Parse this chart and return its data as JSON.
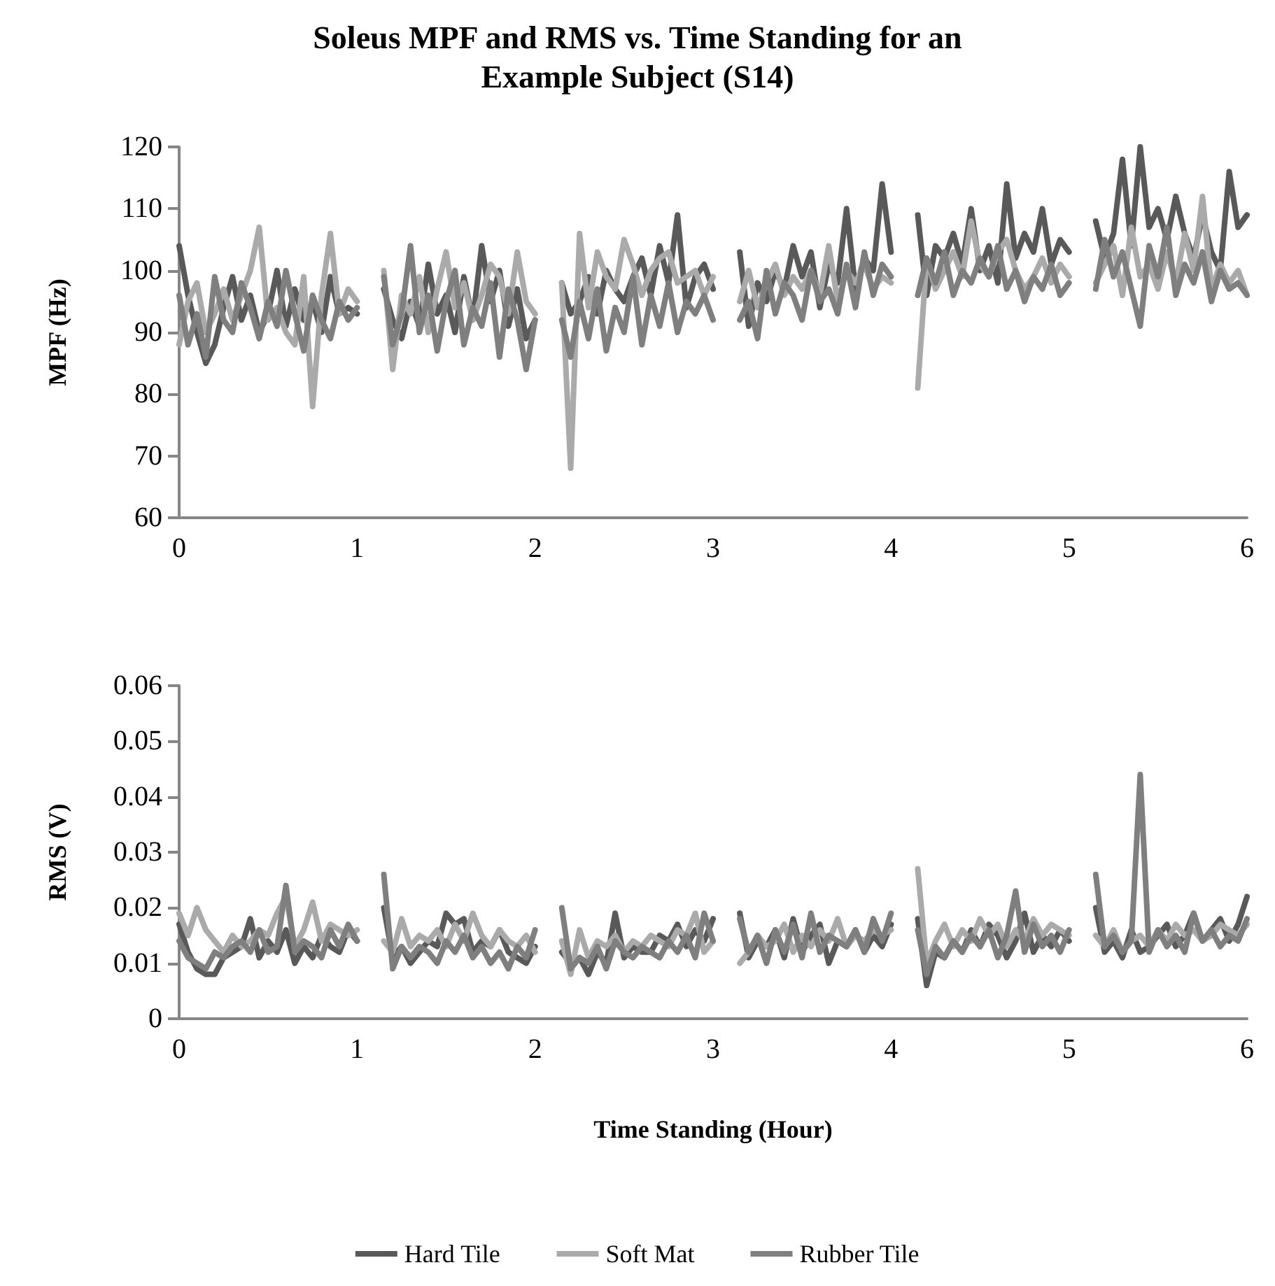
{
  "chart_data": [
    {
      "type": "line",
      "title": "Soleus MPF and RMS vs. Time Standing for an\nExample Subject (S14)",
      "ylabel": "MPF (Hz)",
      "xlim": [
        0,
        6
      ],
      "xticks": [
        0,
        1,
        2,
        3,
        4,
        5,
        6
      ],
      "ylim": [
        60,
        120
      ],
      "yticks": [
        60,
        70,
        80,
        90,
        100,
        110,
        120
      ],
      "grid": false,
      "legend": false,
      "marker": "none",
      "line_style": "solid",
      "x": [
        0,
        0.05,
        0.1,
        0.15,
        0.2,
        0.25,
        0.3,
        0.35,
        0.4,
        0.45,
        0.5,
        0.55,
        0.6,
        0.65,
        0.7,
        0.75,
        0.8,
        0.85,
        0.9,
        0.95,
        1,
        1.05,
        1.1,
        1.15,
        1.2,
        1.25,
        1.3,
        1.35,
        1.4,
        1.45,
        1.5,
        1.55,
        1.6,
        1.65,
        1.7,
        1.75,
        1.8,
        1.85,
        1.9,
        1.95,
        2,
        2.05,
        2.1,
        2.15,
        2.2,
        2.25,
        2.3,
        2.35,
        2.4,
        2.45,
        2.5,
        2.55,
        2.6,
        2.65,
        2.7,
        2.75,
        2.8,
        2.85,
        2.9,
        2.95,
        3,
        3.05,
        3.1,
        3.15,
        3.2,
        3.25,
        3.3,
        3.35,
        3.4,
        3.45,
        3.5,
        3.55,
        3.6,
        3.65,
        3.7,
        3.75,
        3.8,
        3.85,
        3.9,
        3.95,
        4,
        4.05,
        4.1,
        4.15,
        4.2,
        4.25,
        4.3,
        4.35,
        4.4,
        4.45,
        4.5,
        4.55,
        4.6,
        4.65,
        4.7,
        4.75,
        4.8,
        4.85,
        4.9,
        4.95,
        5,
        5.05,
        5.1,
        5.15,
        5.2,
        5.25,
        5.3,
        5.35,
        5.4,
        5.45,
        5.5,
        5.55,
        5.6,
        5.65,
        5.7,
        5.75,
        5.8,
        5.85,
        5.9,
        5.95,
        6
      ],
      "series": [
        {
          "color": "#595959",
          "values": [
            104,
            96,
            90,
            85,
            88,
            94,
            99,
            92,
            96,
            90,
            93,
            100,
            91,
            97,
            92,
            95,
            90,
            99,
            93,
            94,
            93,
            null,
            null,
            97,
            92,
            89,
            95,
            91,
            101,
            93,
            96,
            90,
            99,
            92,
            104,
            95,
            100,
            91,
            97,
            89,
            92,
            null,
            null,
            98,
            93,
            95,
            99,
            93,
            100,
            97,
            95,
            99,
            102,
            96,
            104,
            98,
            109,
            94,
            99,
            101,
            97,
            null,
            null,
            103,
            91,
            98,
            95,
            100,
            97,
            104,
            99,
            103,
            94,
            101,
            98,
            110,
            97,
            102,
            100,
            114,
            103,
            null,
            null,
            109,
            96,
            104,
            102,
            106,
            101,
            110,
            100,
            104,
            98,
            114,
            102,
            106,
            103,
            110,
            101,
            105,
            103,
            null,
            null,
            108,
            102,
            106,
            118,
            104,
            120,
            107,
            110,
            105,
            112,
            106,
            102,
            109,
            103,
            100,
            116,
            107,
            109
          ]
        },
        {
          "color": "#aaaaaa",
          "values": [
            88,
            95,
            98,
            90,
            93,
            97,
            92,
            96,
            100,
            107,
            92,
            94,
            90,
            88,
            99,
            78,
            96,
            106,
            93,
            97,
            95,
            null,
            null,
            100,
            84,
            96,
            93,
            99,
            90,
            97,
            103,
            94,
            98,
            92,
            96,
            101,
            99,
            93,
            103,
            95,
            93,
            null,
            null,
            98,
            68,
            106,
            94,
            103,
            99,
            97,
            105,
            101,
            96,
            100,
            102,
            103,
            98,
            99,
            100,
            96,
            99,
            null,
            null,
            95,
            100,
            94,
            98,
            101,
            96,
            99,
            97,
            100,
            96,
            104,
            95,
            100,
            98,
            101,
            97,
            99,
            98,
            null,
            null,
            81,
            102,
            97,
            100,
            103,
            99,
            108,
            101,
            99,
            103,
            105,
            100,
            97,
            99,
            102,
            98,
            101,
            99,
            null,
            null,
            98,
            101,
            104,
            96,
            107,
            99,
            101,
            97,
            103,
            98,
            106,
            100,
            112,
            97,
            101,
            98,
            100,
            96
          ]
        },
        {
          "color": "#7f7f7f",
          "values": [
            96,
            88,
            93,
            86,
            99,
            92,
            90,
            98,
            94,
            89,
            95,
            91,
            100,
            93,
            87,
            96,
            92,
            89,
            95,
            92,
            94,
            null,
            null,
            99,
            88,
            93,
            104,
            90,
            96,
            87,
            95,
            100,
            88,
            94,
            91,
            98,
            86,
            97,
            92,
            84,
            92,
            null,
            null,
            92,
            86,
            95,
            89,
            97,
            87,
            94,
            90,
            99,
            88,
            96,
            91,
            98,
            90,
            95,
            93,
            96,
            92,
            null,
            null,
            92,
            95,
            89,
            100,
            93,
            98,
            96,
            92,
            100,
            95,
            97,
            93,
            101,
            94,
            103,
            96,
            101,
            99,
            null,
            null,
            96,
            102,
            98,
            103,
            96,
            100,
            98,
            102,
            99,
            104,
            97,
            100,
            95,
            99,
            97,
            101,
            96,
            98,
            null,
            null,
            97,
            105,
            99,
            103,
            97,
            91,
            104,
            99,
            107,
            96,
            101,
            98,
            103,
            95,
            100,
            97,
            98,
            96
          ]
        }
      ]
    },
    {
      "type": "line",
      "ylabel": "RMS (V)",
      "xlabel": "Time Standing (Hour)",
      "xlim": [
        0,
        6
      ],
      "xticks": [
        0,
        1,
        2,
        3,
        4,
        5,
        6
      ],
      "ylim": [
        0,
        0.06
      ],
      "yticks": [
        0,
        0.01,
        0.02,
        0.03,
        0.04,
        0.05,
        0.06
      ],
      "grid": false,
      "legend": "bottom",
      "marker": "none",
      "line_style": "solid",
      "x": [
        0,
        0.05,
        0.1,
        0.15,
        0.2,
        0.25,
        0.3,
        0.35,
        0.4,
        0.45,
        0.5,
        0.55,
        0.6,
        0.65,
        0.7,
        0.75,
        0.8,
        0.85,
        0.9,
        0.95,
        1,
        1.05,
        1.1,
        1.15,
        1.2,
        1.25,
        1.3,
        1.35,
        1.4,
        1.45,
        1.5,
        1.55,
        1.6,
        1.65,
        1.7,
        1.75,
        1.8,
        1.85,
        1.9,
        1.95,
        2,
        2.05,
        2.1,
        2.15,
        2.2,
        2.25,
        2.3,
        2.35,
        2.4,
        2.45,
        2.5,
        2.55,
        2.6,
        2.65,
        2.7,
        2.75,
        2.8,
        2.85,
        2.9,
        2.95,
        3,
        3.05,
        3.1,
        3.15,
        3.2,
        3.25,
        3.3,
        3.35,
        3.4,
        3.45,
        3.5,
        3.55,
        3.6,
        3.65,
        3.7,
        3.75,
        3.8,
        3.85,
        3.9,
        3.95,
        4,
        4.05,
        4.1,
        4.15,
        4.2,
        4.25,
        4.3,
        4.35,
        4.4,
        4.45,
        4.5,
        4.55,
        4.6,
        4.65,
        4.7,
        4.75,
        4.8,
        4.85,
        4.9,
        4.95,
        5,
        5.05,
        5.1,
        5.15,
        5.2,
        5.25,
        5.3,
        5.35,
        5.4,
        5.45,
        5.5,
        5.55,
        5.6,
        5.65,
        5.7,
        5.75,
        5.8,
        5.85,
        5.9,
        5.95,
        6
      ],
      "series": [
        {
          "name": "Hard Tile",
          "color": "#595959",
          "values": [
            0.017,
            0.012,
            0.009,
            0.008,
            0.008,
            0.011,
            0.012,
            0.013,
            0.018,
            0.011,
            0.014,
            0.012,
            0.016,
            0.01,
            0.013,
            0.011,
            0.015,
            0.013,
            0.012,
            0.016,
            0.014,
            null,
            null,
            0.02,
            0.011,
            0.013,
            0.01,
            0.012,
            0.014,
            0.013,
            0.019,
            0.017,
            0.018,
            0.012,
            0.014,
            0.013,
            0.016,
            0.012,
            0.011,
            0.01,
            0.013,
            null,
            null,
            0.012,
            0.01,
            0.011,
            0.008,
            0.012,
            0.01,
            0.019,
            0.011,
            0.013,
            0.012,
            0.012,
            0.015,
            0.014,
            0.017,
            0.013,
            0.016,
            0.014,
            0.018,
            null,
            null,
            0.019,
            0.011,
            0.014,
            0.013,
            0.016,
            0.011,
            0.018,
            0.012,
            0.015,
            0.017,
            0.01,
            0.014,
            0.013,
            0.016,
            0.012,
            0.015,
            0.013,
            0.017,
            null,
            null,
            0.018,
            0.006,
            0.012,
            0.011,
            0.014,
            0.012,
            0.016,
            0.013,
            0.017,
            0.015,
            0.011,
            0.014,
            0.019,
            0.012,
            0.015,
            0.013,
            0.016,
            0.014,
            null,
            null,
            0.02,
            0.012,
            0.014,
            0.011,
            0.016,
            0.012,
            0.013,
            0.015,
            0.017,
            0.013,
            0.015,
            0.019,
            0.014,
            0.016,
            0.018,
            0.014,
            0.017,
            0.022
          ]
        },
        {
          "name": "Soft Mat",
          "color": "#aaaaaa",
          "values": [
            0.019,
            0.015,
            0.02,
            0.016,
            0.014,
            0.012,
            0.015,
            0.013,
            0.014,
            0.016,
            0.015,
            0.019,
            0.022,
            0.013,
            0.016,
            0.021,
            0.014,
            0.017,
            0.016,
            0.015,
            0.016,
            null,
            null,
            0.014,
            0.012,
            0.018,
            0.013,
            0.015,
            0.014,
            0.016,
            0.013,
            0.017,
            0.014,
            0.019,
            0.015,
            0.013,
            0.016,
            0.014,
            0.013,
            0.015,
            0.012,
            null,
            null,
            0.014,
            0.008,
            0.016,
            0.011,
            0.014,
            0.013,
            0.015,
            0.012,
            0.014,
            0.013,
            0.015,
            0.014,
            0.013,
            0.016,
            0.015,
            0.019,
            0.012,
            0.014,
            null,
            null,
            0.01,
            0.012,
            0.015,
            0.013,
            0.014,
            0.017,
            0.012,
            0.015,
            0.013,
            0.016,
            0.014,
            0.018,
            0.013,
            0.015,
            0.014,
            0.016,
            0.015,
            0.016,
            null,
            null,
            0.027,
            0.01,
            0.014,
            0.017,
            0.013,
            0.016,
            0.014,
            0.018,
            0.015,
            0.017,
            0.013,
            0.016,
            0.014,
            0.018,
            0.015,
            0.017,
            0.016,
            0.015,
            null,
            null,
            0.015,
            0.013,
            0.016,
            0.012,
            0.014,
            0.015,
            0.013,
            0.016,
            0.014,
            0.017,
            0.015,
            0.016,
            0.014,
            0.015,
            0.017,
            0.016,
            0.015,
            0.017
          ]
        },
        {
          "name": "Rubber Tile",
          "color": "#7f7f7f",
          "values": [
            0.014,
            0.011,
            0.01,
            0.009,
            0.012,
            0.011,
            0.013,
            0.014,
            0.012,
            0.016,
            0.012,
            0.013,
            0.024,
            0.012,
            0.014,
            0.013,
            0.011,
            0.016,
            0.013,
            0.017,
            0.014,
            null,
            null,
            0.026,
            0.009,
            0.013,
            0.011,
            0.013,
            0.012,
            0.01,
            0.014,
            0.012,
            0.015,
            0.011,
            0.013,
            0.01,
            0.012,
            0.009,
            0.013,
            0.011,
            0.016,
            null,
            null,
            0.02,
            0.009,
            0.011,
            0.01,
            0.013,
            0.009,
            0.014,
            0.012,
            0.011,
            0.013,
            0.012,
            0.011,
            0.014,
            0.012,
            0.015,
            0.011,
            0.019,
            0.014,
            null,
            null,
            0.018,
            0.012,
            0.015,
            0.01,
            0.016,
            0.012,
            0.017,
            0.011,
            0.019,
            0.012,
            0.015,
            0.014,
            0.013,
            0.016,
            0.012,
            0.018,
            0.014,
            0.019,
            null,
            null,
            0.016,
            0.008,
            0.013,
            0.011,
            0.014,
            0.012,
            0.015,
            0.013,
            0.016,
            0.011,
            0.015,
            0.023,
            0.012,
            0.017,
            0.013,
            0.015,
            0.012,
            0.016,
            null,
            null,
            0.026,
            0.013,
            0.015,
            0.012,
            0.014,
            0.044,
            0.012,
            0.016,
            0.013,
            0.015,
            0.012,
            0.019,
            0.014,
            0.016,
            0.013,
            0.015,
            0.014,
            0.018
          ]
        }
      ]
    }
  ]
}
